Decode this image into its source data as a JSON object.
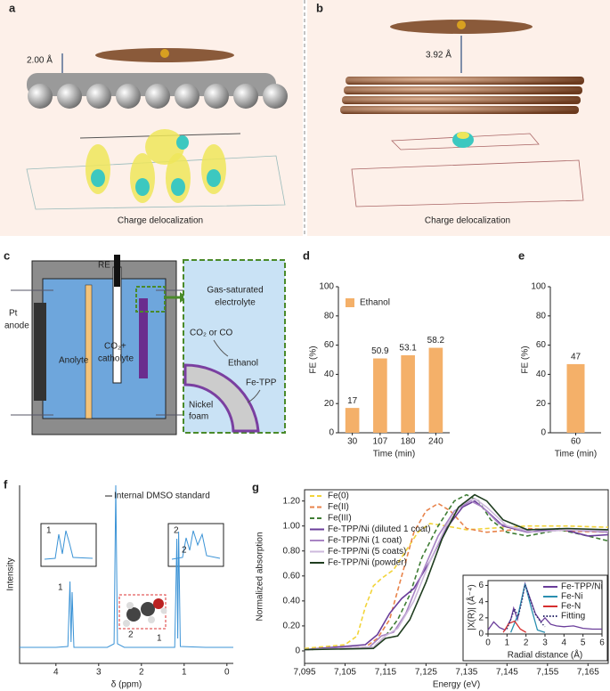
{
  "panels": {
    "a": {
      "label": "a",
      "distance": "2.00 Å",
      "caption": "Charge delocalization"
    },
    "b": {
      "label": "b",
      "distance": "3.92 Å",
      "caption": "Charge delocalization"
    },
    "c": {
      "label": "c",
      "reference": "RE",
      "electrolyte": [
        "Gas-saturated",
        "electrolyte"
      ],
      "anode": [
        "Pt",
        "anode"
      ],
      "anolyte": "Anolyte",
      "catholyte": [
        "CO₂+",
        "catholyte"
      ],
      "feed": "CO₂ or CO",
      "product": "Ethanol",
      "catalyst": "Fe-TPP",
      "support": [
        "Nickel",
        "foam"
      ]
    }
  },
  "chart_data": [
    {
      "type": "bar",
      "panel": "d",
      "categories": [
        "30",
        "107",
        "180",
        "240"
      ],
      "series": [
        {
          "name": "Ethanol",
          "color": "#f4b069",
          "values": [
            17,
            50.9,
            53.1,
            58.2
          ]
        }
      ],
      "ylim": [
        0,
        100
      ],
      "yticks": [
        0,
        20,
        40,
        60,
        80,
        100
      ],
      "xlabel": "Time (min)",
      "ylabel": "FE (%)",
      "legend": "upper left"
    },
    {
      "type": "bar",
      "panel": "e",
      "categories": [
        "60"
      ],
      "series": [
        {
          "color": "#f4b069",
          "values": [
            47
          ]
        }
      ],
      "ylim": [
        0,
        100
      ],
      "yticks": [
        0,
        20,
        40,
        60,
        80,
        100
      ],
      "xlabel": "Time (min)",
      "ylabel": "FE (%)"
    },
    {
      "type": "line",
      "panel": "f",
      "x": [
        4.85,
        4.0,
        3.72,
        3.67,
        3.645,
        3.62,
        3.58,
        2.8,
        2.64,
        2.6,
        2.56,
        2.4,
        1.22,
        1.17,
        1.15,
        1.13,
        1.09,
        0.5,
        -0.15
      ],
      "series": [
        {
          "color": "#3b93d6",
          "values": [
            9,
            9,
            9.5,
            46,
            12,
            40,
            9,
            9,
            11,
            100,
            11,
            9,
            9,
            70,
            14,
            74,
            9.5,
            9,
            9
          ]
        }
      ],
      "xlim": [
        4.85,
        -0.15
      ],
      "ylim": [
        0,
        100
      ],
      "xticks": [
        4,
        3,
        2,
        1,
        0
      ],
      "xlabel": "δ (ppm)",
      "ylabel": "Intensity",
      "annotation": "Internal DMSO standard",
      "peak_labels": [
        "1",
        "2"
      ],
      "inset_labels": [
        "1",
        "2"
      ],
      "molecule_labels": [
        "2",
        "1"
      ]
    },
    {
      "type": "line",
      "panel": "g",
      "xlim": [
        7095,
        7170
      ],
      "ylim": [
        -0.1,
        1.29
      ],
      "xticks": [
        {
          "value": 7095,
          "label": "7,095"
        },
        {
          "value": 7105,
          "label": "7,105"
        },
        {
          "value": 7115,
          "label": "7,115"
        },
        {
          "value": 7125,
          "label": "7,125"
        },
        {
          "value": 7135,
          "label": "7,135"
        },
        {
          "value": 7145,
          "label": "7,145"
        },
        {
          "value": 7155,
          "label": "7,155"
        },
        {
          "value": 7165,
          "label": "7,165"
        }
      ],
      "yticks": [
        0,
        {
          "value": 0.2,
          "label": "0.20"
        },
        {
          "value": 0.4,
          "label": "0.40"
        },
        {
          "value": 0.6,
          "label": "0.60"
        },
        {
          "value": 0.8,
          "label": "0.80"
        },
        {
          "value": 1.0,
          "label": "1.00"
        },
        {
          "value": 1.2,
          "label": "1.20"
        }
      ],
      "xlabel": "Energy (eV)",
      "ylabel": "Normalized absorption",
      "legend": "upper left",
      "series": [
        {
          "name": "Fe(0)",
          "color": "#f2d43a",
          "style": "dashed",
          "x": [
            7095,
            7105,
            7108,
            7110,
            7112,
            7114,
            7117,
            7120,
            7123,
            7126,
            7130,
            7135,
            7140,
            7150,
            7160,
            7170
          ],
          "values": [
            0.02,
            0.05,
            0.12,
            0.35,
            0.52,
            0.58,
            0.65,
            0.8,
            0.95,
            1.02,
            1.0,
            0.97,
            0.98,
            1.0,
            1.0,
            0.99
          ]
        },
        {
          "name": "Fe(II)",
          "color": "#e8834a",
          "style": "dashed",
          "x": [
            7095,
            7110,
            7113,
            7116,
            7119,
            7122,
            7125,
            7128,
            7131,
            7135,
            7140,
            7150,
            7160,
            7170
          ],
          "values": [
            0.01,
            0.03,
            0.1,
            0.25,
            0.6,
            0.95,
            1.12,
            1.18,
            1.12,
            0.98,
            0.95,
            0.98,
            0.96,
            0.95
          ]
        },
        {
          "name": "Fe(III)",
          "color": "#3f7d35",
          "style": "dashed",
          "x": [
            7095,
            7112,
            7115,
            7118,
            7121,
            7124,
            7128,
            7132,
            7135,
            7138,
            7141,
            7145,
            7150,
            7158,
            7165,
            7170
          ],
          "values": [
            0.01,
            0.03,
            0.12,
            0.25,
            0.45,
            0.75,
            1.0,
            1.2,
            1.25,
            1.2,
            1.05,
            0.95,
            0.92,
            0.97,
            0.92,
            0.88
          ]
        },
        {
          "name": "Fe-TPP/Ni (diluted 1 coat)",
          "color": "#6a3d9a",
          "style": "solid",
          "x": [
            7095,
            7110,
            7113,
            7116,
            7119,
            7122,
            7126,
            7130,
            7134,
            7137,
            7140,
            7144,
            7150,
            7158,
            7165,
            7170
          ],
          "values": [
            0.01,
            0.05,
            0.13,
            0.3,
            0.42,
            0.5,
            0.72,
            0.98,
            1.15,
            1.2,
            1.12,
            1.0,
            0.95,
            0.98,
            0.92,
            0.93
          ]
        },
        {
          "name": "Fe-TPP/Ni (1 coat)",
          "color": "#a884c4",
          "style": "solid",
          "x": [
            7095,
            7111,
            7114,
            7117,
            7120,
            7124,
            7128,
            7132,
            7136,
            7139,
            7143,
            7150,
            7160,
            7170
          ],
          "values": [
            0.01,
            0.03,
            0.12,
            0.15,
            0.3,
            0.62,
            0.92,
            1.12,
            1.2,
            1.15,
            1.02,
            0.95,
            0.97,
            0.95
          ]
        },
        {
          "name": "Fe-TPP/Ni (5 coats)",
          "color": "#cdb9dc",
          "style": "solid",
          "x": [
            7095,
            7112,
            7115,
            7118,
            7122,
            7126,
            7130,
            7134,
            7137,
            7140,
            7145,
            7152,
            7160,
            7170
          ],
          "values": [
            0.01,
            0.03,
            0.12,
            0.18,
            0.4,
            0.72,
            1.0,
            1.18,
            1.22,
            1.15,
            1.0,
            0.95,
            0.97,
            0.96
          ]
        },
        {
          "name": "Fe-TPP/Ni (powder)",
          "color": "#1f3d1f",
          "style": "solid",
          "x": [
            7095,
            7112,
            7115,
            7118,
            7121,
            7125,
            7129,
            7133,
            7137,
            7140,
            7144,
            7150,
            7160,
            7170
          ],
          "values": [
            0.01,
            0.02,
            0.1,
            0.12,
            0.25,
            0.55,
            0.9,
            1.15,
            1.25,
            1.2,
            1.05,
            0.97,
            0.98,
            0.97
          ]
        }
      ]
    },
    {
      "type": "line",
      "panel": "g-inset",
      "xlim": [
        0,
        6
      ],
      "ylim": [
        0,
        6.6
      ],
      "xticks": [
        0,
        1,
        2,
        3,
        4,
        5,
        6
      ],
      "yticks": [
        0,
        2,
        4,
        6
      ],
      "xlabel": "Radial distance (Å)",
      "ylabel": "|X(R)| (Å⁻⁴)",
      "legend": "upper right",
      "series": [
        {
          "name": "Fe-TPP/Ni",
          "color": "#6a3d9a",
          "style": "solid",
          "x": [
            0,
            0.3,
            0.6,
            0.9,
            1.2,
            1.35,
            1.55,
            1.75,
            1.95,
            2.2,
            2.5,
            2.8,
            3.0,
            3.3,
            3.6,
            4.0,
            4.5,
            5.0,
            5.5,
            6.0
          ],
          "values": [
            0.5,
            1.5,
            0.8,
            0.5,
            1.8,
            3.2,
            1.8,
            4.0,
            6.2,
            4.5,
            2.5,
            1.5,
            2.0,
            1.2,
            1.0,
            0.9,
            1.0,
            0.7,
            0.6,
            0.6
          ]
        },
        {
          "name": "Fe-Ni",
          "color": "#2a8fb0",
          "style": "solid",
          "x": [
            1.2,
            1.6,
            1.95,
            2.3,
            2.6,
            3.0
          ],
          "values": [
            0.2,
            2.5,
            6.2,
            3.0,
            0.5,
            0.2
          ]
        },
        {
          "name": "Fe-N",
          "color": "#d62f2f",
          "style": "solid",
          "x": [
            0.8,
            1.1,
            1.4,
            1.7,
            2.0
          ],
          "values": [
            0.2,
            1.3,
            1.6,
            0.6,
            0.2
          ]
        },
        {
          "name": "Fitting",
          "color": "#2a2a6a",
          "style": "dotted",
          "x": [
            1.0,
            1.2,
            1.4,
            1.6,
            1.8,
            1.95,
            2.2,
            2.5,
            2.8,
            3.0
          ],
          "values": [
            0.6,
            1.8,
            3.1,
            2.2,
            4.2,
            6.1,
            4.4,
            2.4,
            1.4,
            0.9
          ]
        }
      ]
    }
  ]
}
